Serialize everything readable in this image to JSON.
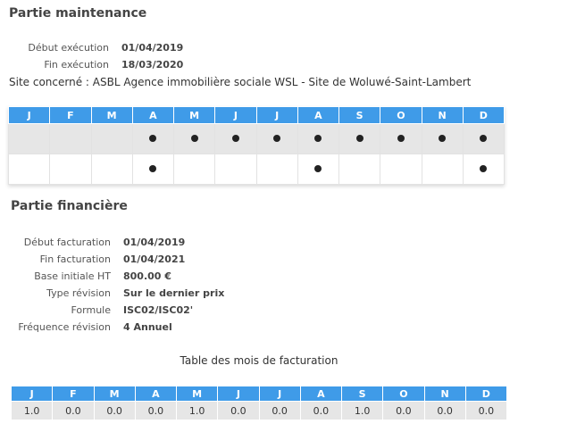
{
  "maintenance": {
    "title": "Partie maintenance",
    "fields": [
      {
        "label": "Début exécution",
        "value": "01/04/2019"
      },
      {
        "label": "Fin exécution",
        "value": "18/03/2020"
      }
    ],
    "site": "Site concerné : ASBL Agence immobilière sociale WSL - Site de Woluwé-Saint-Lambert",
    "months": [
      "J",
      "F",
      "M",
      "A",
      "M",
      "J",
      "J",
      "A",
      "S",
      "O",
      "N",
      "D"
    ],
    "rows": [
      [
        false,
        false,
        false,
        true,
        true,
        true,
        true,
        true,
        true,
        true,
        true,
        true
      ],
      [
        false,
        false,
        false,
        true,
        false,
        false,
        false,
        true,
        false,
        false,
        false,
        true
      ]
    ]
  },
  "financial": {
    "title": "Partie financière",
    "fields": [
      {
        "label": "Début facturation",
        "value": "01/04/2019"
      },
      {
        "label": "Fin facturation",
        "value": "01/04/2021"
      },
      {
        "label": "Base initiale HT",
        "value": "800.00 €"
      },
      {
        "label": "Type révision",
        "value": "Sur le dernier prix"
      },
      {
        "label": "Formule",
        "value": "ISC02/ISC02'"
      },
      {
        "label": "Fréquence révision",
        "value": "4 Annuel"
      }
    ],
    "table_caption": "Table des mois de facturation",
    "months": [
      "J",
      "F",
      "M",
      "A",
      "M",
      "J",
      "J",
      "A",
      "S",
      "O",
      "N",
      "D"
    ],
    "values": [
      "1.0",
      "0.0",
      "0.0",
      "0.0",
      "1.0",
      "0.0",
      "0.0",
      "0.0",
      "1.0",
      "0.0",
      "0.0",
      "0.0"
    ]
  }
}
